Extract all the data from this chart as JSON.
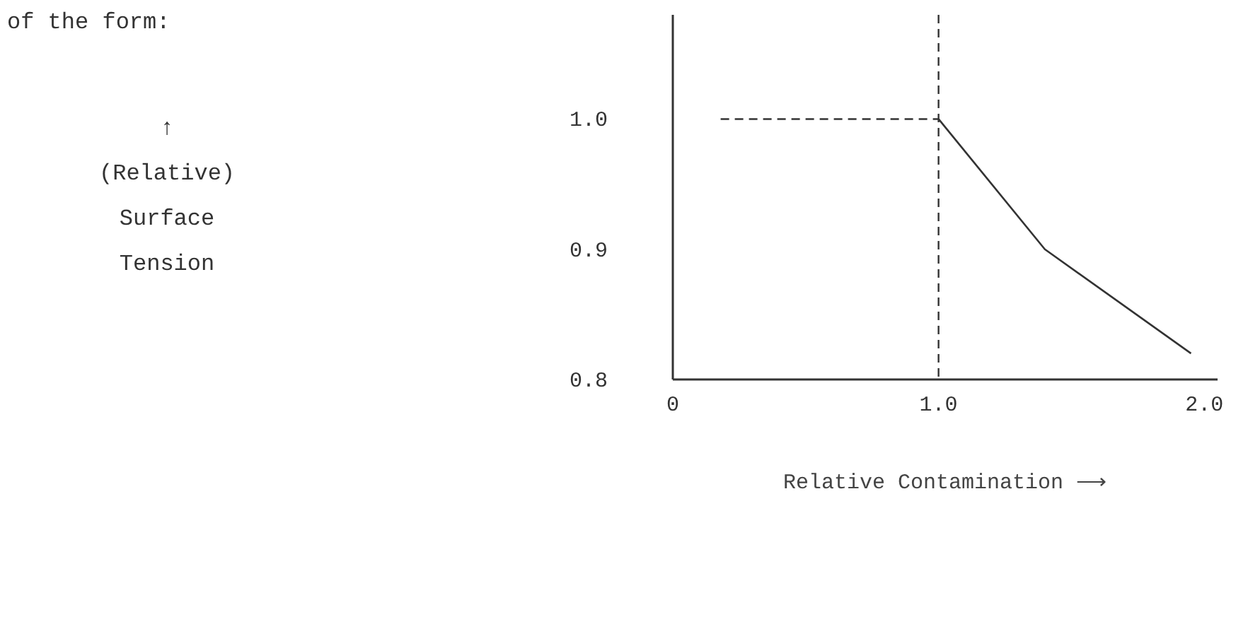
{
  "chart_data": {
    "type": "line",
    "xlabel": "Relative Contamination ⟶",
    "annotations": [
      "of the form:",
      "↑\n(Relative)\nSurface\nTension"
    ],
    "series": [
      {
        "color": "#333333",
        "line_style": "dashed",
        "x": [
          0.18,
          1.0
        ],
        "values": [
          1.0,
          1.0
        ]
      },
      {
        "color": "#333333",
        "line_style": "solid",
        "x": [
          1.0,
          1.4,
          1.95
        ],
        "values": [
          1.0,
          0.9,
          0.82
        ]
      }
    ],
    "xlim": [
      0,
      2.05
    ],
    "ylim": [
      0.8,
      1.08
    ],
    "xticks": [
      0,
      {
        "value": 1,
        "label": "1.0"
      },
      {
        "value": 2,
        "label": "2.0"
      }
    ],
    "yticks": [
      {
        "value": 0.8,
        "label": "0.8"
      },
      {
        "value": 0.9,
        "label": "0.9"
      },
      {
        "value": 1.0,
        "label": "1.0"
      }
    ],
    "ref_lines": [
      {
        "axis": "x",
        "value": 1.0,
        "label": null,
        "line_style": "dashed",
        "color": "#333333"
      }
    ],
    "grid": false,
    "marker": "none"
  }
}
